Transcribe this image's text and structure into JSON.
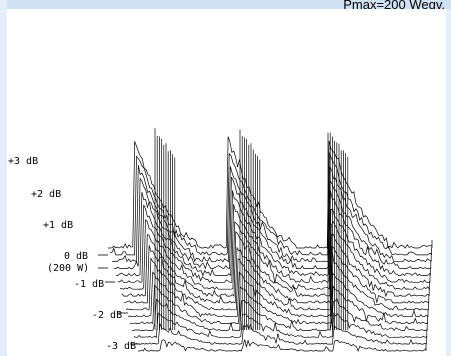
{
  "chart_data": {
    "type": "line",
    "title": "",
    "header_note": "Pmax=200 Weqv.",
    "ytick_labels": [
      "+3 dB",
      "+2 dB",
      "+1 dB",
      "0 dB",
      "(200 W)",
      "-1 dB",
      "-2 dB",
      "-3 dB"
    ],
    "y_levels_db": [
      3,
      2,
      1,
      0,
      -1,
      -2,
      -3
    ],
    "reference_level": "0 dB (200 W)",
    "peaks": [
      {
        "position": 1,
        "level_db": 3.3
      },
      {
        "position": 2,
        "level_db": 3.3
      },
      {
        "position": 3,
        "level_db": 3.3
      }
    ],
    "grid": false,
    "colors": {
      "frame": "#e3eef8",
      "top_bar": "#cfe1f2",
      "trace": "#000000"
    }
  }
}
